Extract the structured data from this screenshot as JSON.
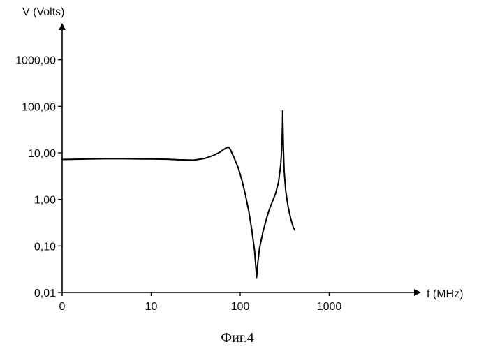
{
  "chart_data": {
    "type": "line",
    "ylabel": "V (Volts)",
    "xlabel": "f (MHz)",
    "caption": "Фиг.4",
    "x_scale": "log",
    "y_scale": "log",
    "xlim": [
      1,
      10000
    ],
    "ylim": [
      0.01,
      10000
    ],
    "grid": false,
    "legend": "none",
    "x_ticks": [
      {
        "value": 1,
        "label": "0"
      },
      {
        "value": 10,
        "label": "10"
      },
      {
        "value": 100,
        "label": "100"
      },
      {
        "value": 1000,
        "label": "1000"
      }
    ],
    "y_ticks": [
      {
        "value": 0.01,
        "label": "0,01"
      },
      {
        "value": 0.1,
        "label": "0,10"
      },
      {
        "value": 1,
        "label": "1,00"
      },
      {
        "value": 10,
        "label": "10,00"
      },
      {
        "value": 100,
        "label": "100,00"
      },
      {
        "value": 1000,
        "label": "1000,00"
      }
    ],
    "series": [
      {
        "color": "#000000",
        "x": [
          1,
          2,
          3,
          5,
          8,
          10,
          15,
          20,
          30,
          40,
          50,
          60,
          65,
          70,
          74,
          78,
          85,
          95,
          105,
          115,
          125,
          135,
          145,
          150,
          153,
          157,
          165,
          180,
          200,
          215,
          230,
          250,
          270,
          285,
          293,
          298,
          300,
          302,
          306,
          312,
          325,
          345,
          370,
          395,
          410
        ],
        "y": [
          7.2,
          7.4,
          7.5,
          7.5,
          7.4,
          7.4,
          7.3,
          7.1,
          7.0,
          7.6,
          8.8,
          10.5,
          11.8,
          12.8,
          13.3,
          11.5,
          8.0,
          4.8,
          2.5,
          1.2,
          0.55,
          0.22,
          0.08,
          0.035,
          0.021,
          0.04,
          0.09,
          0.2,
          0.42,
          0.65,
          0.9,
          1.35,
          2.4,
          5.5,
          12.0,
          35.0,
          80.0,
          40.0,
          12.0,
          4.0,
          1.5,
          0.7,
          0.38,
          0.25,
          0.22
        ]
      }
    ]
  }
}
